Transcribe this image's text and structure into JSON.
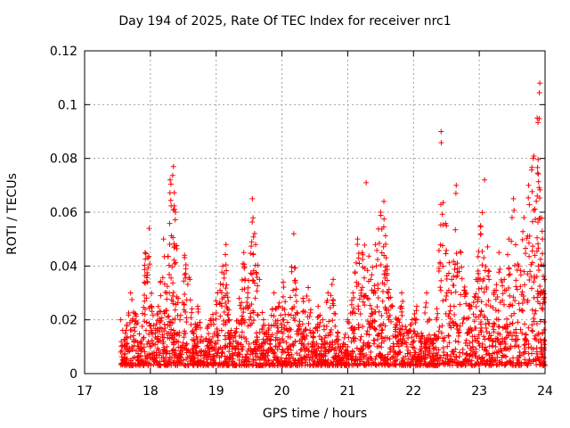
{
  "chart_data": {
    "type": "scatter",
    "title": "Day 194 of 2025, Rate Of TEC Index for receiver nrc1",
    "xlabel": "GPS time / hours",
    "ylabel": "ROTI / TECUs",
    "xlim": [
      17,
      24
    ],
    "ylim": [
      0,
      0.12
    ],
    "x_ticks": [
      "17",
      "18",
      "19",
      "20",
      "21",
      "22",
      "23",
      "24"
    ],
    "y_ticks": [
      "0",
      "0.02",
      "0.04",
      "0.06",
      "0.08",
      "0.1",
      "0.12"
    ],
    "grid": true,
    "marker": "+",
    "color": "#ff0000",
    "series": [
      {
        "name": "nrc1 ROTI",
        "x": [
          17.55,
          17.62,
          17.7,
          17.78,
          17.86,
          17.92,
          17.98,
          18.05,
          18.12,
          18.2,
          18.25,
          18.3,
          18.35,
          18.38,
          18.45,
          18.52,
          18.6,
          18.66,
          18.72,
          18.8,
          18.88,
          18.95,
          19.02,
          19.1,
          19.15,
          19.2,
          19.28,
          19.35,
          19.42,
          19.48,
          19.55,
          19.6,
          19.66,
          19.72,
          19.8,
          19.88,
          19.95,
          20.02,
          20.1,
          20.18,
          20.25,
          20.32,
          20.4,
          20.48,
          20.55,
          20.62,
          20.7,
          20.78,
          20.85,
          20.92,
          21.0,
          21.08,
          21.15,
          21.22,
          21.28,
          21.35,
          21.42,
          21.5,
          21.55,
          21.6,
          21.68,
          21.75,
          21.82,
          21.9,
          21.98,
          22.05,
          22.12,
          22.2,
          22.28,
          22.35,
          22.42,
          22.5,
          22.58,
          22.65,
          22.72,
          22.8,
          22.88,
          22.95,
          23.02,
          23.08,
          23.15,
          23.22,
          23.3,
          23.38,
          23.45,
          23.52,
          23.6,
          23.68,
          23.75,
          23.82,
          23.88,
          23.92,
          23.96,
          23.99
        ],
        "y": [
          0.02,
          0.015,
          0.03,
          0.022,
          0.012,
          0.045,
          0.054,
          0.018,
          0.025,
          0.05,
          0.03,
          0.072,
          0.077,
          0.06,
          0.02,
          0.044,
          0.035,
          0.015,
          0.025,
          0.012,
          0.018,
          0.022,
          0.03,
          0.04,
          0.048,
          0.02,
          0.015,
          0.028,
          0.045,
          0.03,
          0.065,
          0.048,
          0.035,
          0.02,
          0.018,
          0.03,
          0.025,
          0.034,
          0.022,
          0.052,
          0.018,
          0.028,
          0.032,
          0.015,
          0.025,
          0.02,
          0.03,
          0.035,
          0.015,
          0.01,
          0.02,
          0.03,
          0.05,
          0.045,
          0.071,
          0.035,
          0.048,
          0.06,
          0.064,
          0.04,
          0.025,
          0.02,
          0.03,
          0.015,
          0.02,
          0.025,
          0.015,
          0.03,
          0.012,
          0.02,
          0.09,
          0.055,
          0.035,
          0.07,
          0.045,
          0.03,
          0.025,
          0.035,
          0.055,
          0.072,
          0.038,
          0.03,
          0.045,
          0.035,
          0.05,
          0.065,
          0.04,
          0.058,
          0.07,
          0.08,
          0.095,
          0.108,
          0.05,
          0.035
        ],
        "low_x": [
          17.55,
          17.6,
          17.65,
          17.7,
          17.75,
          17.8,
          17.85,
          17.9,
          17.95,
          18.0,
          18.05,
          18.1,
          18.15,
          18.2,
          18.25,
          18.3,
          18.35,
          18.4,
          18.45,
          18.5,
          18.55,
          18.6,
          18.65,
          18.7,
          18.75,
          18.8,
          18.85,
          18.9,
          18.95,
          19.0,
          19.05,
          19.1,
          19.15,
          19.2,
          19.25,
          19.3,
          19.35,
          19.4,
          19.45,
          19.5,
          19.55,
          19.6,
          19.65,
          19.7,
          19.75,
          19.8,
          19.85,
          19.9,
          19.95,
          20.0,
          20.05,
          20.1,
          20.15,
          20.2,
          20.25,
          20.3,
          20.35,
          20.4,
          20.45,
          20.5,
          20.55,
          20.6,
          20.65,
          20.7,
          20.75,
          20.8,
          20.85,
          20.9,
          20.95,
          21.0,
          21.05,
          21.1,
          21.15,
          21.2,
          21.25,
          21.3,
          21.35,
          21.4,
          21.45,
          21.5,
          21.55,
          21.6,
          21.65,
          21.7,
          21.75,
          21.8,
          21.85,
          21.9,
          21.95,
          22.0,
          22.05,
          22.1,
          22.15,
          22.2,
          22.25,
          22.3,
          22.35,
          22.4,
          22.45,
          22.5,
          22.55,
          22.6,
          22.65,
          22.7,
          22.75,
          22.8,
          22.85,
          22.9,
          22.95,
          23.0,
          23.05,
          23.1,
          23.15,
          23.2,
          23.25,
          23.3,
          23.35,
          23.4,
          23.45,
          23.5,
          23.55,
          23.6,
          23.65,
          23.7,
          23.75,
          23.8,
          23.85,
          23.9,
          23.95,
          24.0
        ],
        "low_y": [
          0.008,
          0.005,
          0.01,
          0.004,
          0.012,
          0.006,
          0.009,
          0.003,
          0.011,
          0.007,
          0.005,
          0.013,
          0.008,
          0.006,
          0.01,
          0.004,
          0.009,
          0.012,
          0.007,
          0.005,
          0.011,
          0.008,
          0.006,
          0.01,
          0.004,
          0.012,
          0.007,
          0.009,
          0.005,
          0.011,
          0.006,
          0.008,
          0.004,
          0.01,
          0.007,
          0.012,
          0.005,
          0.009,
          0.006,
          0.011,
          0.008,
          0.004,
          0.01,
          0.007,
          0.012,
          0.005,
          0.009,
          0.006,
          0.011,
          0.008,
          0.004,
          0.01,
          0.007,
          0.012,
          0.005,
          0.009,
          0.006,
          0.011,
          0.008,
          0.004,
          0.01,
          0.007,
          0.012,
          0.005,
          0.009,
          0.006,
          0.011,
          0.008,
          0.004,
          0.01,
          0.007,
          0.012,
          0.005,
          0.009,
          0.006,
          0.011,
          0.008,
          0.004,
          0.01,
          0.007,
          0.012,
          0.005,
          0.009,
          0.006,
          0.011,
          0.008,
          0.004,
          0.01,
          0.007,
          0.012,
          0.005,
          0.009,
          0.006,
          0.003,
          0.004,
          0.005,
          0.003,
          0.006,
          0.004,
          0.007,
          0.005,
          0.008,
          0.006,
          0.004,
          0.009,
          0.007,
          0.005,
          0.01,
          0.008,
          0.006,
          0.011,
          0.009,
          0.007,
          0.012,
          0.01,
          0.008,
          0.013,
          0.011,
          0.009,
          0.014,
          0.012,
          0.01,
          0.015,
          0.013,
          0.011,
          0.016,
          0.014,
          0.012,
          0.006,
          0.003
        ]
      }
    ]
  }
}
